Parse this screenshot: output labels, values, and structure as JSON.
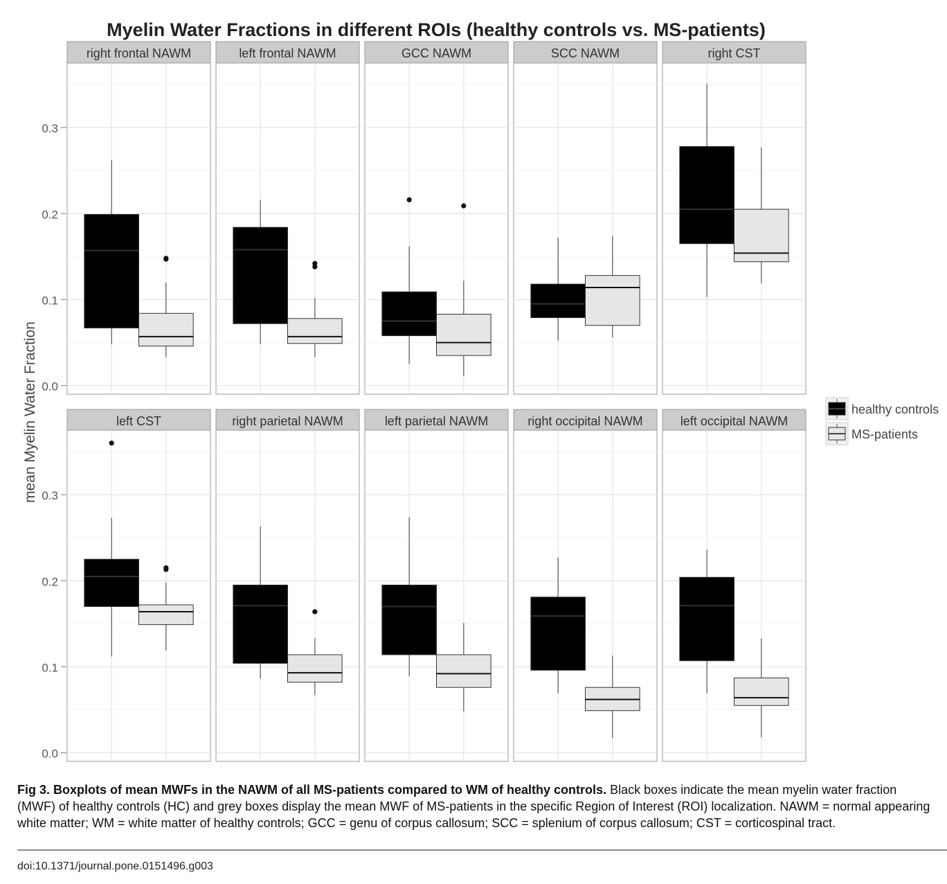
{
  "chart_data": {
    "type": "boxplot",
    "title": "Myelin Water Fractions in different ROIs (healthy controls vs. MS-patients)",
    "ylabel": "mean Myelin Water Fraction",
    "ylim": [
      -0.01,
      0.375
    ],
    "yticks": [
      0.0,
      0.1,
      0.2,
      0.3
    ],
    "ytick_labels": [
      "0.0",
      "0.1",
      "0.2",
      "0.3"
    ],
    "grid": true,
    "legend": {
      "position": "right",
      "entries": [
        "healthy controls",
        "MS-patients"
      ]
    },
    "series_colors": {
      "healthy controls": "#000000",
      "MS-patients": "#e6e6e6"
    },
    "panels": [
      {
        "title": "right frontal NAWM",
        "healthy_controls": {
          "min": 0.048,
          "q1": 0.067,
          "median": 0.157,
          "q3": 0.199,
          "max": 0.262,
          "outliers": []
        },
        "ms_patients": {
          "min": 0.033,
          "q1": 0.046,
          "median": 0.057,
          "q3": 0.084,
          "max": 0.12,
          "outliers": [
            0.147,
            0.148
          ]
        }
      },
      {
        "title": "left frontal NAWM",
        "healthy_controls": {
          "min": 0.048,
          "q1": 0.072,
          "median": 0.158,
          "q3": 0.184,
          "max": 0.216,
          "outliers": []
        },
        "ms_patients": {
          "min": 0.033,
          "q1": 0.049,
          "median": 0.057,
          "q3": 0.078,
          "max": 0.102,
          "outliers": [
            0.138,
            0.142
          ]
        }
      },
      {
        "title": "GCC NAWM",
        "healthy_controls": {
          "min": 0.025,
          "q1": 0.058,
          "median": 0.075,
          "q3": 0.109,
          "max": 0.162,
          "outliers": [
            0.216
          ]
        },
        "ms_patients": {
          "min": 0.011,
          "q1": 0.035,
          "median": 0.05,
          "q3": 0.083,
          "max": 0.122,
          "outliers": [
            0.209
          ]
        }
      },
      {
        "title": "SCC NAWM",
        "healthy_controls": {
          "min": 0.052,
          "q1": 0.079,
          "median": 0.095,
          "q3": 0.118,
          "max": 0.172,
          "outliers": []
        },
        "ms_patients": {
          "min": 0.056,
          "q1": 0.07,
          "median": 0.114,
          "q3": 0.128,
          "max": 0.174,
          "outliers": []
        }
      },
      {
        "title": "right CST",
        "healthy_controls": {
          "min": 0.103,
          "q1": 0.165,
          "median": 0.205,
          "q3": 0.278,
          "max": 0.351,
          "outliers": []
        },
        "ms_patients": {
          "min": 0.119,
          "q1": 0.144,
          "median": 0.154,
          "q3": 0.205,
          "max": 0.277,
          "outliers": []
        }
      },
      {
        "title": "left CST",
        "healthy_controls": {
          "min": 0.112,
          "q1": 0.17,
          "median": 0.205,
          "q3": 0.225,
          "max": 0.273,
          "outliers": [
            0.36
          ]
        },
        "ms_patients": {
          "min": 0.119,
          "q1": 0.149,
          "median": 0.164,
          "q3": 0.172,
          "max": 0.198,
          "outliers": [
            0.213,
            0.215
          ]
        }
      },
      {
        "title": "right parietal NAWM",
        "healthy_controls": {
          "min": 0.086,
          "q1": 0.104,
          "median": 0.171,
          "q3": 0.195,
          "max": 0.263,
          "outliers": []
        },
        "ms_patients": {
          "min": 0.067,
          "q1": 0.082,
          "median": 0.093,
          "q3": 0.114,
          "max": 0.133,
          "outliers": [
            0.164
          ]
        }
      },
      {
        "title": "left parietal NAWM",
        "healthy_controls": {
          "min": 0.089,
          "q1": 0.114,
          "median": 0.17,
          "q3": 0.195,
          "max": 0.274,
          "outliers": []
        },
        "ms_patients": {
          "min": 0.048,
          "q1": 0.076,
          "median": 0.092,
          "q3": 0.114,
          "max": 0.151,
          "outliers": []
        }
      },
      {
        "title": "right occipital NAWM",
        "healthy_controls": {
          "min": 0.069,
          "q1": 0.096,
          "median": 0.159,
          "q3": 0.181,
          "max": 0.227,
          "outliers": []
        },
        "ms_patients": {
          "min": 0.017,
          "q1": 0.049,
          "median": 0.062,
          "q3": 0.076,
          "max": 0.113,
          "outliers": []
        }
      },
      {
        "title": "left occipital NAWM",
        "healthy_controls": {
          "min": 0.069,
          "q1": 0.107,
          "median": 0.171,
          "q3": 0.204,
          "max": 0.236,
          "outliers": []
        },
        "ms_patients": {
          "min": 0.018,
          "q1": 0.055,
          "median": 0.064,
          "q3": 0.087,
          "max": 0.133,
          "outliers": []
        }
      }
    ]
  },
  "caption": {
    "label": "Fig 3.",
    "bold_text": "Boxplots of mean MWFs in the NAWM of all MS-patients compared to WM of healthy controls.",
    "text": "Black boxes indicate the mean myelin water fraction (MWF) of healthy controls (HC) and grey boxes display the mean MWF of MS-patients in the specific Region of Interest (ROI) localization. NAWM = normal appearing white matter; WM = white matter of healthy controls; GCC = genu of corpus callosum; SCC = splenium of corpus callosum; CST = corticospinal tract."
  },
  "doi": "doi:10.1371/journal.pone.0151496.g003"
}
